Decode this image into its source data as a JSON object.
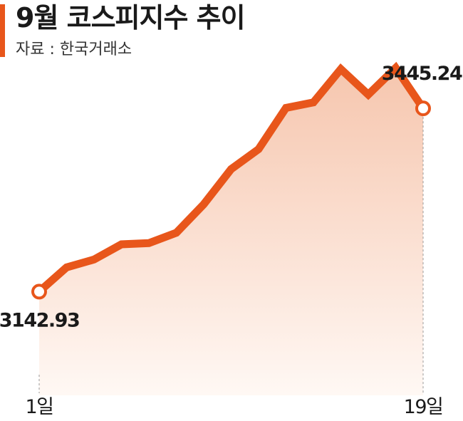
{
  "header": {
    "title": "9월 코스피지수 추이",
    "source": "자료 : 한국거래소"
  },
  "colors": {
    "accent": "#E8561B",
    "fill_top": "#F6C6AE",
    "fill_bottom": "#FFF8F4",
    "marker_fill": "#FFFFFF",
    "guide": "#999999"
  },
  "chart_data": {
    "type": "area",
    "x_tick_labels": [
      "1일",
      "19일"
    ],
    "values": [
      3142.93,
      3183,
      3196,
      3221,
      3223,
      3240,
      3287,
      3345,
      3378,
      3446,
      3455,
      3510,
      3468,
      3512,
      3445.24
    ],
    "start_label": "3142.93",
    "end_label": "3445.24",
    "ylim": [
      3060,
      3530
    ],
    "grid": false,
    "legend": "none"
  }
}
